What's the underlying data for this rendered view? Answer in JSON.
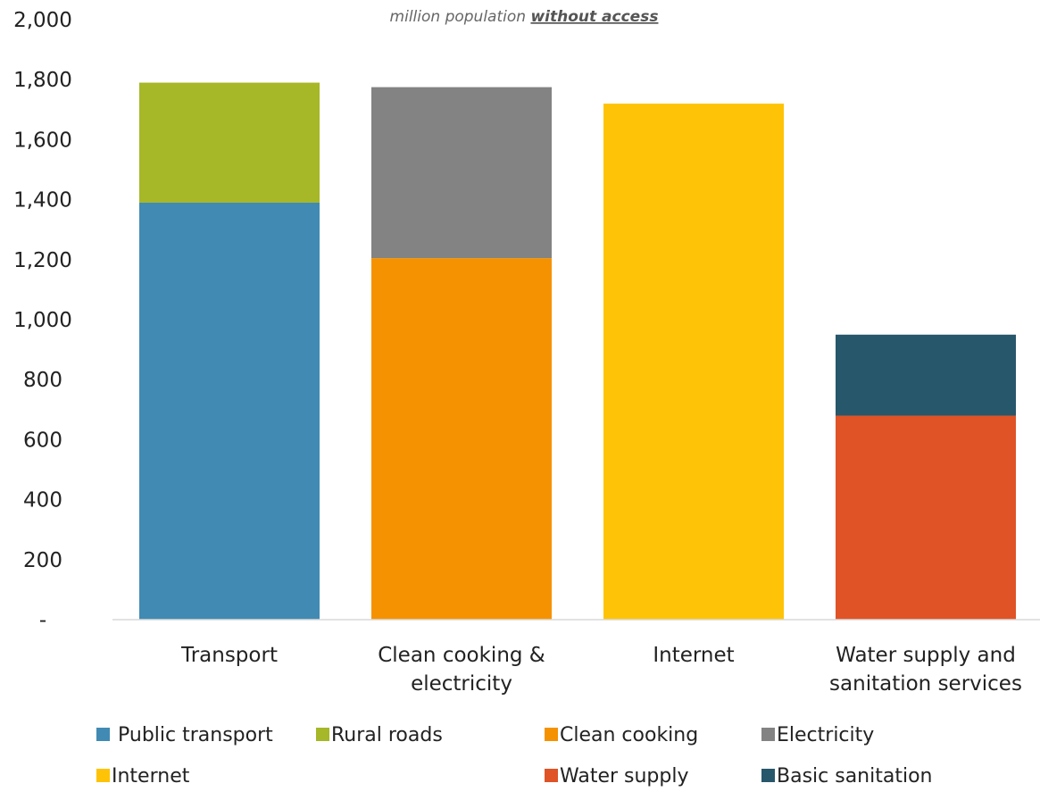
{
  "chart_data": {
    "type": "bar",
    "stacked": true,
    "subtitle_prefix": "million population ",
    "subtitle_emphasis": "without access",
    "ylim": [
      0,
      2000
    ],
    "yticks": [
      {
        "value": 0,
        "label": "-"
      },
      {
        "value": 200,
        "label": "200"
      },
      {
        "value": 400,
        "label": "400"
      },
      {
        "value": 600,
        "label": "600"
      },
      {
        "value": 800,
        "label": "800"
      },
      {
        "value": 1000,
        "label": "1,000"
      },
      {
        "value": 1200,
        "label": "1,200"
      },
      {
        "value": 1400,
        "label": "1,400"
      },
      {
        "value": 1600,
        "label": "1,600"
      },
      {
        "value": 1800,
        "label": "1,800"
      },
      {
        "value": 2000,
        "label": "2,000"
      }
    ],
    "grid": false,
    "legend_position": "bottom",
    "categories": [
      [
        "Transport"
      ],
      [
        "Clean cooking &",
        "electricity"
      ],
      [
        "Internet"
      ],
      [
        "Water supply and",
        "sanitation services"
      ]
    ],
    "series": [
      {
        "name": " Public transport",
        "color": "#418ab3",
        "values": [
          1390,
          0,
          0,
          0
        ]
      },
      {
        "name": "Rural roads",
        "color": "#a6b727",
        "values": [
          400,
          0,
          0,
          0
        ]
      },
      {
        "name": "Clean cooking",
        "color": "#f59201",
        "values": [
          0,
          1205,
          0,
          0
        ]
      },
      {
        "name": "Electricity",
        "color": "#838383",
        "values": [
          0,
          570,
          0,
          0
        ]
      },
      {
        "name": "Internet",
        "color": "#fec306",
        "values": [
          0,
          0,
          1720,
          0
        ]
      },
      {
        "name": "Water supply",
        "color": "#df5327",
        "values": [
          0,
          0,
          0,
          680
        ]
      },
      {
        "name": "Basic sanitation",
        "color": "#27576b",
        "values": [
          0,
          0,
          0,
          270
        ]
      }
    ]
  }
}
